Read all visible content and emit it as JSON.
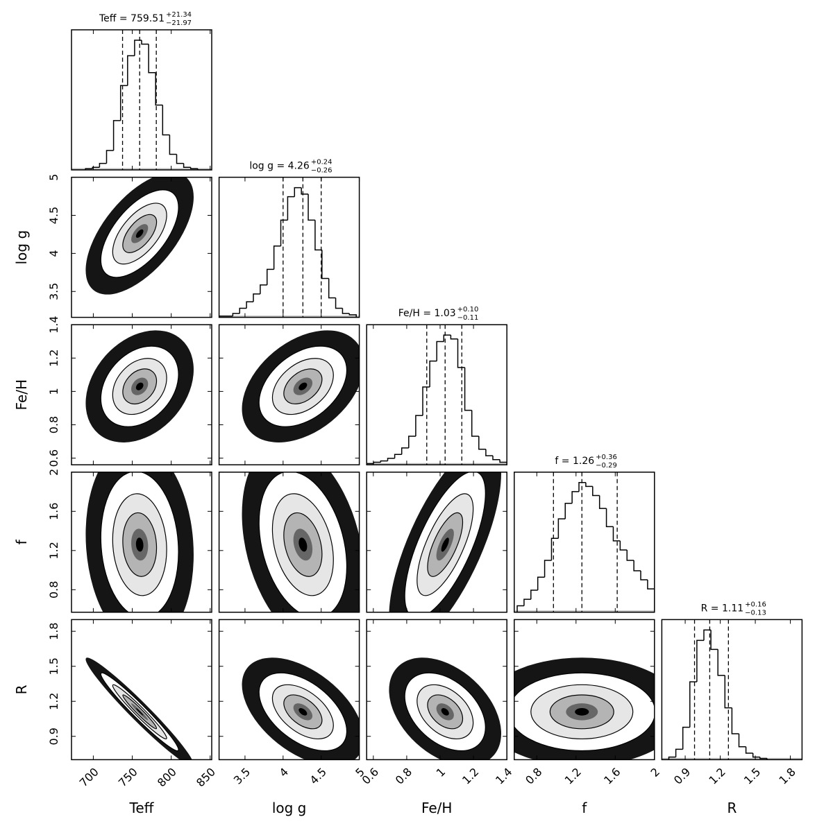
{
  "chart_data": {
    "type": "corner",
    "hist_ylim": [
      0,
      108
    ],
    "parameters": [
      {
        "name": "Teff",
        "title": "Teff = 759.51",
        "upper": "+21.34",
        "lower": "−21.97",
        "lim": [
          672,
          852
        ],
        "ticks": [
          700,
          750,
          800,
          850
        ],
        "quantiles": [
          737.54,
          759.51,
          780.85
        ],
        "bins": [
          672,
          681,
          690,
          699,
          708,
          717,
          726,
          735,
          744,
          753,
          762,
          771,
          780,
          789,
          798,
          807,
          816,
          825,
          834,
          843,
          852
        ],
        "counts": [
          0,
          0,
          1,
          2,
          5,
          15,
          38,
          65,
          88,
          100,
          97,
          75,
          50,
          27,
          12,
          5,
          2,
          1,
          0,
          0
        ]
      },
      {
        "name": "log g",
        "title": "log g = 4.26",
        "upper": "+0.24",
        "lower": "−0.26",
        "lim": [
          3.16,
          5.0
        ],
        "ticks": [
          3.5,
          4.0,
          4.5,
          5.0
        ],
        "quantiles": [
          4.0,
          4.26,
          4.5
        ],
        "bins": [
          3.16,
          3.25,
          3.34,
          3.43,
          3.52,
          3.61,
          3.7,
          3.79,
          3.88,
          3.97,
          4.06,
          4.15,
          4.24,
          4.33,
          4.42,
          4.51,
          4.6,
          4.69,
          4.78,
          4.87,
          4.96
        ],
        "counts": [
          1,
          1,
          3,
          7,
          12,
          18,
          25,
          37,
          55,
          75,
          93,
          100,
          95,
          75,
          52,
          30,
          15,
          7,
          3,
          2
        ]
      },
      {
        "name": "Fe/H",
        "title": "Fe/H = 1.03",
        "upper": "+0.10",
        "lower": "−0.11",
        "lim": [
          0.56,
          1.4
        ],
        "ticks": [
          0.6,
          0.8,
          1.0,
          1.2,
          1.4
        ],
        "quantiles": [
          0.92,
          1.03,
          1.13
        ],
        "bins": [
          0.56,
          0.602,
          0.644,
          0.686,
          0.728,
          0.77,
          0.812,
          0.854,
          0.896,
          0.938,
          0.98,
          1.022,
          1.064,
          1.106,
          1.148,
          1.19,
          1.232,
          1.274,
          1.316,
          1.358,
          1.4
        ],
        "counts": [
          1,
          2,
          3,
          5,
          8,
          13,
          22,
          38,
          60,
          80,
          95,
          100,
          97,
          75,
          42,
          22,
          12,
          7,
          4,
          2
        ]
      },
      {
        "name": "f",
        "title": "f = 1.26",
        "upper": "+0.36",
        "lower": "−0.29",
        "lim": [
          0.57,
          2.0
        ],
        "ticks": [
          0.8,
          1.2,
          1.6,
          2.0
        ],
        "quantiles": [
          0.97,
          1.26,
          1.62
        ],
        "bins": [
          0.6,
          0.67,
          0.74,
          0.81,
          0.88,
          0.95,
          1.02,
          1.09,
          1.16,
          1.23,
          1.3,
          1.37,
          1.44,
          1.51,
          1.58,
          1.65,
          1.72,
          1.79,
          1.86,
          1.93,
          2.0
        ],
        "counts": [
          5,
          10,
          17,
          27,
          40,
          57,
          72,
          84,
          93,
          100,
          97,
          90,
          80,
          66,
          55,
          48,
          40,
          32,
          25,
          18
        ]
      },
      {
        "name": "R",
        "title": "R = 1.11",
        "upper": "+0.16",
        "lower": "−0.13",
        "lim": [
          0.7,
          1.9
        ],
        "ticks": [
          0.9,
          1.2,
          1.5,
          1.8
        ],
        "quantiles": [
          0.98,
          1.11,
          1.27
        ],
        "bins": [
          0.7,
          0.76,
          0.82,
          0.88,
          0.94,
          1.0,
          1.06,
          1.12,
          1.18,
          1.24,
          1.3,
          1.36,
          1.42,
          1.48,
          1.54,
          1.6,
          1.66,
          1.72,
          1.78,
          1.84,
          1.9
        ],
        "counts": [
          0,
          2,
          8,
          25,
          60,
          92,
          100,
          85,
          65,
          40,
          20,
          10,
          5,
          2,
          1,
          0,
          0,
          0,
          0,
          0
        ]
      }
    ],
    "correlations": [
      [
        0.6
      ],
      [
        0.3,
        0.4
      ],
      [
        -0.1,
        -0.3,
        0.7
      ],
      [
        -0.97,
        -0.5,
        -0.4,
        0.0
      ]
    ]
  }
}
